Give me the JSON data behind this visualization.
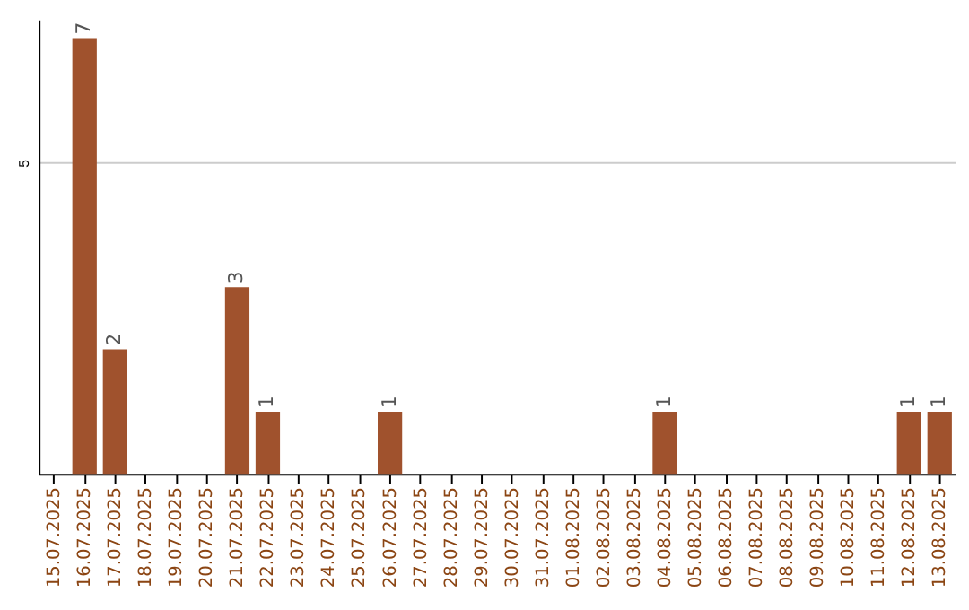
{
  "chart_data": {
    "type": "bar",
    "categories": [
      "15.07.2025",
      "16.07.2025",
      "17.07.2025",
      "18.07.2025",
      "19.07.2025",
      "20.07.2025",
      "21.07.2025",
      "22.07.2025",
      "23.07.2025",
      "24.07.2025",
      "25.07.2025",
      "26.07.2025",
      "27.07.2025",
      "28.07.2025",
      "29.07.2025",
      "30.07.2025",
      "31.07.2025",
      "01.08.2025",
      "02.08.2025",
      "03.08.2025",
      "04.08.2025",
      "05.08.2025",
      "06.08.2025",
      "07.08.2025",
      "08.08.2025",
      "09.08.2025",
      "10.08.2025",
      "11.08.2025",
      "12.08.2025",
      "13.08.2025"
    ],
    "values": [
      0,
      7,
      2,
      0,
      0,
      0,
      3,
      1,
      0,
      0,
      0,
      1,
      0,
      0,
      0,
      0,
      0,
      0,
      0,
      0,
      1,
      0,
      0,
      0,
      0,
      0,
      0,
      0,
      1,
      1
    ],
    "value_labels": [
      null,
      "7",
      "2",
      null,
      null,
      null,
      "3",
      "1",
      null,
      null,
      null,
      "1",
      null,
      null,
      null,
      null,
      null,
      null,
      null,
      null,
      "1",
      null,
      null,
      null,
      null,
      null,
      null,
      null,
      "1",
      "1"
    ],
    "color": "#a0522d",
    "ylim": [
      0,
      7.3
    ],
    "yticks": [
      5
    ],
    "grid": "y"
  }
}
